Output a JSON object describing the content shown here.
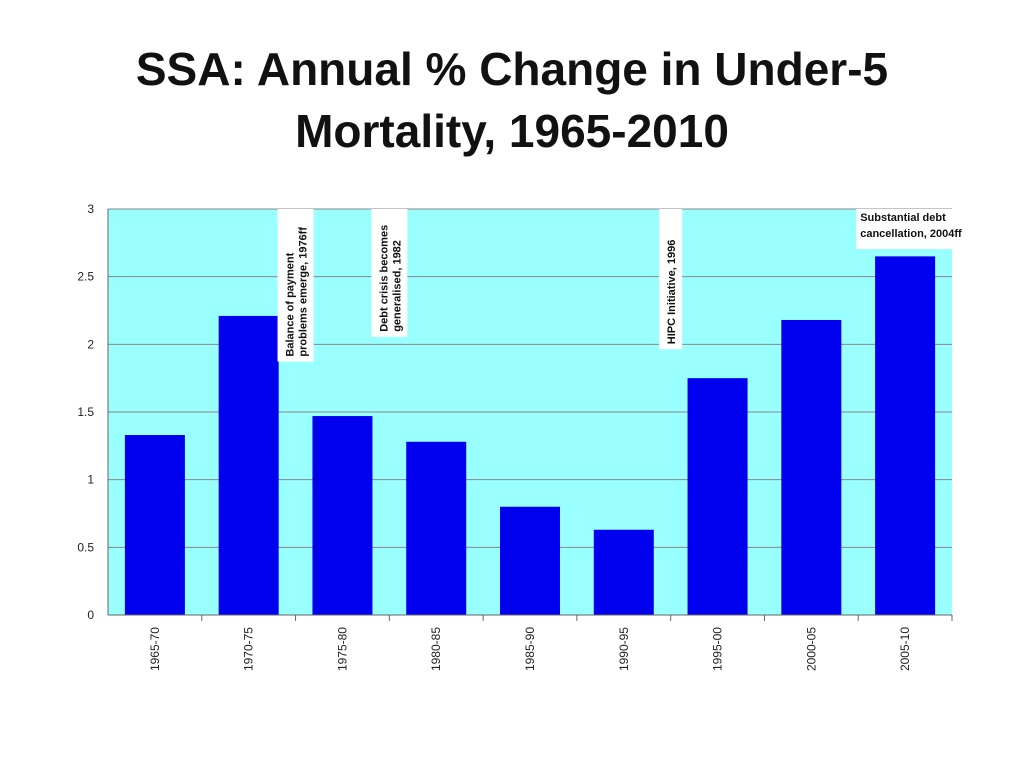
{
  "chart_data": {
    "type": "bar",
    "title": "SSA: Annual % Change in Under-5\nMortality, 1965-2010",
    "categories": [
      "1965-70",
      "1970-75",
      "1975-80",
      "1980-85",
      "1985-90",
      "1990-95",
      "1995-00",
      "2000-05",
      "2005-10"
    ],
    "values": [
      1.33,
      2.21,
      1.47,
      1.28,
      0.8,
      0.63,
      1.75,
      2.18,
      2.65
    ],
    "ylim": [
      0,
      3
    ],
    "yticks": [
      "0",
      "0.5",
      "1",
      "1.5",
      "2",
      "2.5",
      "3"
    ],
    "xlabel": "",
    "ylabel": "",
    "grid": true,
    "legend": "none",
    "colors": {
      "bar": "#0000ee",
      "plot_background": "#99ffff",
      "gridline": "#888888",
      "annotation_background": "#ffffff"
    },
    "annotations": [
      {
        "after_category": "1970-75",
        "lines": [
          "Balance of payment",
          "problems emerge, 1976ff"
        ],
        "orientation": "vertical"
      },
      {
        "after_category": "1975-80",
        "lines": [
          "Debt crisis becomes",
          "generalised, 1982"
        ],
        "orientation": "vertical"
      },
      {
        "after_category": "1990-95",
        "lines": [
          "HIPC Initiative, 1996"
        ],
        "orientation": "vertical"
      },
      {
        "after_category": "2000-05",
        "lines": [
          "Substantial debt",
          "cancellation, 2004ff"
        ],
        "orientation": "horizontal"
      }
    ]
  }
}
